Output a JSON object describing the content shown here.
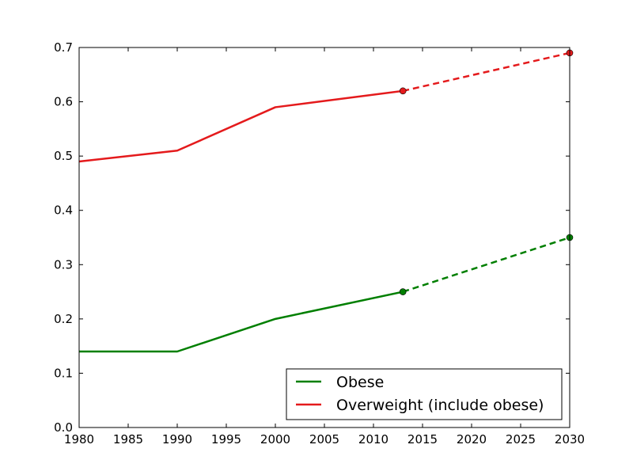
{
  "chart_data": {
    "type": "line",
    "title": "",
    "xlabel": "",
    "ylabel": "",
    "xlim": [
      1980,
      2030
    ],
    "ylim": [
      0.0,
      0.7
    ],
    "x_ticks": [
      1980,
      1985,
      1990,
      1995,
      2000,
      2005,
      2010,
      2015,
      2020,
      2025,
      2030
    ],
    "x_tick_labels": [
      "1980",
      "1985",
      "1990",
      "1995",
      "2000",
      "2005",
      "2010",
      "2015",
      "2020",
      "2025",
      "2030"
    ],
    "y_ticks": [
      0.0,
      0.1,
      0.2,
      0.3,
      0.4,
      0.5,
      0.6,
      0.7
    ],
    "y_tick_labels": [
      "0.0",
      "0.1",
      "0.2",
      "0.3",
      "0.4",
      "0.5",
      "0.6",
      "0.7"
    ],
    "grid": false,
    "legend_position": "lower-right",
    "series": [
      {
        "name": "Obese",
        "color": "#007f00",
        "x": [
          1980,
          1990,
          2000,
          2013
        ],
        "values": [
          0.14,
          0.14,
          0.2,
          0.25
        ],
        "projection": {
          "x": [
            2013,
            2030
          ],
          "values": [
            0.25,
            0.35
          ]
        }
      },
      {
        "name": "Overweight (include obese)",
        "color": "#e41a1c",
        "x": [
          1980,
          1990,
          2000,
          2013
        ],
        "values": [
          0.49,
          0.51,
          0.59,
          0.62
        ],
        "projection": {
          "x": [
            2013,
            2030
          ],
          "values": [
            0.62,
            0.69
          ]
        }
      }
    ]
  }
}
